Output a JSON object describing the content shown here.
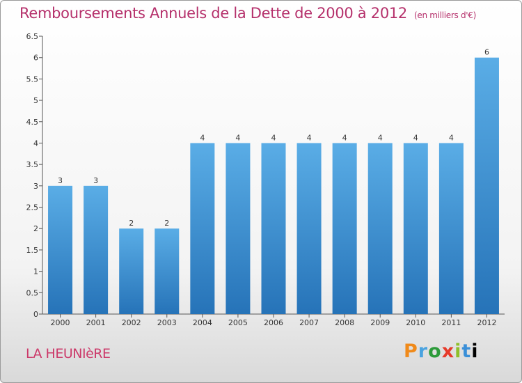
{
  "header": {
    "title": "Remboursements Annuels de la Dette de 2000 à 2012",
    "unit": "(en milliers d'€)"
  },
  "footer": {
    "city": "LA HEUNIèRE",
    "logo": [
      "P",
      "r",
      "o",
      "x",
      "i",
      "t",
      "i"
    ]
  },
  "colors": {
    "bar_top": "#5aade6",
    "bar_bottom": "#2673b8",
    "title": "#b5306b"
  },
  "chart_data": {
    "type": "bar",
    "title": "Remboursements Annuels de la Dette de 2000 à 2012",
    "xlabel": "",
    "ylabel": "",
    "categories": [
      "2000",
      "2001",
      "2002",
      "2003",
      "2004",
      "2005",
      "2006",
      "2007",
      "2008",
      "2009",
      "2010",
      "2011",
      "2012"
    ],
    "values": [
      3,
      3,
      2,
      2,
      4,
      4,
      4,
      4,
      4,
      4,
      4,
      4,
      6
    ],
    "ylim": [
      0,
      6.5
    ],
    "yticks": [
      "0",
      "0.5",
      "1",
      "1.5",
      "2",
      "2.5",
      "3",
      "3.5",
      "4",
      "4.5",
      "5",
      "5.5",
      "6",
      "6.5"
    ],
    "grid": false,
    "data_labels": true
  }
}
